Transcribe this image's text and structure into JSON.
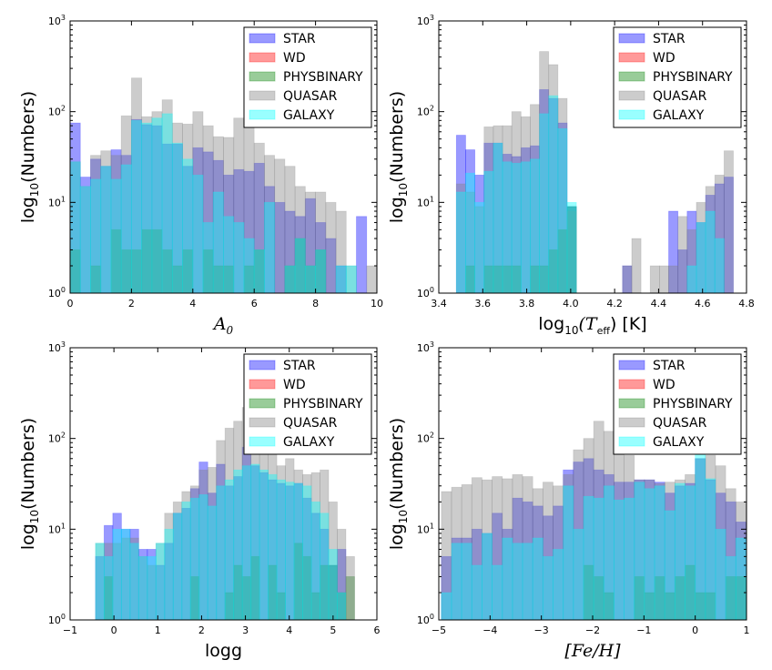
{
  "legend": [
    "STAR",
    "WD",
    "PHYSBINARY",
    "QUASAR",
    "GALAXY"
  ],
  "colors": {
    "STAR": "#0000ff",
    "WD": "#ff0000",
    "PHYSBINARY": "#008000",
    "QUASAR": "#808080",
    "GALAXY": "#00ffff"
  },
  "ylabel": {
    "main": "log",
    "sub": "10",
    "rest": "(Numbers)"
  },
  "chart_data": [
    {
      "type": "histogram",
      "yscale": "log",
      "ylim": [
        1,
        1000
      ],
      "yticks": [
        "10^0",
        "10^1",
        "10^2",
        "10^3"
      ],
      "xlabel": {
        "main": "A",
        "sub": "0",
        "rest": ""
      },
      "xlim": [
        0,
        10
      ],
      "xticks": [
        "0",
        "2",
        "4",
        "6",
        "8",
        "10"
      ],
      "xtick_values": [
        0,
        2,
        4,
        6,
        8,
        10
      ],
      "bins": {
        "start": 0,
        "width": 0.3333,
        "count": 30
      },
      "legend_position": "top-right",
      "series": [
        {
          "name": "STAR",
          "values": [
            75,
            19,
            30,
            25,
            38,
            33,
            82,
            72,
            70,
            44,
            44,
            25,
            40,
            36,
            29,
            20,
            23,
            22,
            27,
            15,
            10,
            8,
            7,
            11,
            6,
            4,
            2,
            0,
            7,
            0
          ]
        },
        {
          "name": "WD",
          "values": []
        },
        {
          "name": "PHYSBINARY",
          "values": [
            3,
            0,
            2,
            0,
            5,
            3,
            3,
            5,
            5,
            3,
            2,
            3,
            0,
            3,
            2,
            2,
            0,
            2,
            3,
            0,
            0,
            2,
            4,
            2,
            3,
            0,
            0,
            0,
            0,
            0
          ]
        },
        {
          "name": "QUASAR",
          "values": [
            28,
            15,
            33,
            37,
            33,
            90,
            235,
            88,
            100,
            135,
            75,
            73,
            100,
            70,
            53,
            52,
            85,
            70,
            45,
            33,
            30,
            25,
            15,
            13,
            13,
            10,
            8,
            2,
            0,
            2
          ]
        },
        {
          "name": "GALAXY",
          "values": [
            28,
            15,
            18,
            25,
            18,
            26,
            80,
            75,
            85,
            95,
            45,
            30,
            20,
            6,
            13,
            7,
            6,
            4,
            3,
            10,
            0,
            2,
            4,
            2,
            3,
            0,
            2,
            2,
            0,
            0
          ]
        }
      ]
    },
    {
      "type": "histogram",
      "yscale": "log",
      "ylim": [
        1,
        1000
      ],
      "yticks": [
        "10^0",
        "10^1",
        "10^2",
        "10^3"
      ],
      "xlabel": {
        "main": "log",
        "sub": "10",
        "rest": "(T",
        "sub2": "eff",
        "rest2": ") [K]"
      },
      "xlim": [
        3.4,
        4.8
      ],
      "xticks": [
        "3.4",
        "3.6",
        "3.8",
        "4.0",
        "4.2",
        "4.4",
        "4.6",
        "4.8"
      ],
      "xtick_values": [
        3.4,
        3.6,
        3.8,
        4.0,
        4.2,
        4.4,
        4.6,
        4.8
      ],
      "bins": {
        "start": 3.48,
        "width": 0.042,
        "count": 30
      },
      "legend_position": "top-right",
      "series": [
        {
          "name": "STAR",
          "values": [
            55,
            38,
            20,
            45,
            45,
            34,
            32,
            40,
            42,
            175,
            140,
            75,
            9,
            0,
            0,
            0,
            0,
            0,
            2,
            0,
            0,
            0,
            0,
            8,
            3,
            8,
            6,
            12,
            16,
            19
          ]
        },
        {
          "name": "WD",
          "values": []
        },
        {
          "name": "PHYSBINARY",
          "values": [
            0,
            2,
            0,
            2,
            2,
            2,
            2,
            0,
            2,
            2,
            3,
            5,
            9,
            0,
            0,
            0,
            0,
            0,
            0,
            0,
            0,
            0,
            0,
            0,
            0,
            0,
            0,
            0,
            0,
            0
          ]
        },
        {
          "name": "QUASAR",
          "values": [
            16,
            13,
            9,
            68,
            70,
            70,
            100,
            88,
            120,
            460,
            330,
            140,
            8,
            0,
            0,
            0,
            0,
            0,
            2,
            4,
            0,
            2,
            2,
            2,
            7,
            5,
            10,
            15,
            20,
            37
          ]
        },
        {
          "name": "GALAXY",
          "values": [
            13,
            21,
            10,
            22,
            45,
            28,
            27,
            28,
            30,
            95,
            150,
            65,
            10,
            0,
            0,
            0,
            0,
            0,
            0,
            0,
            0,
            0,
            0,
            0,
            0,
            2,
            6,
            8,
            4,
            0
          ]
        }
      ]
    },
    {
      "type": "histogram",
      "yscale": "log",
      "ylim": [
        1,
        1000
      ],
      "yticks": [
        "10^0",
        "10^1",
        "10^2",
        "10^3"
      ],
      "xlabel": {
        "main": "logg",
        "sub": "",
        "rest": ""
      },
      "xlim": [
        -1,
        6
      ],
      "xticks": [
        "−1",
        "0",
        "1",
        "2",
        "3",
        "4",
        "5",
        "6"
      ],
      "xtick_values": [
        -1,
        0,
        1,
        2,
        3,
        4,
        5,
        6
      ],
      "bins": {
        "start": -0.42,
        "width": 0.197,
        "count": 30
      },
      "legend_position": "top-right",
      "series": [
        {
          "name": "STAR",
          "values": [
            5,
            11,
            15,
            10,
            10,
            6,
            6,
            4,
            7,
            15,
            17,
            28,
            55,
            25,
            52,
            30,
            38,
            80,
            50,
            42,
            35,
            32,
            30,
            32,
            22,
            15,
            10,
            4,
            6,
            1
          ]
        },
        {
          "name": "WD",
          "values": []
        },
        {
          "name": "PHYSBINARY",
          "values": [
            0,
            3,
            0,
            0,
            0,
            0,
            0,
            0,
            0,
            0,
            0,
            3,
            0,
            0,
            0,
            2,
            4,
            3,
            5,
            0,
            4,
            2,
            0,
            7,
            5,
            2,
            4,
            4,
            2,
            3
          ]
        },
        {
          "name": "QUASAR",
          "values": [
            7,
            7,
            7,
            8,
            8,
            5,
            4,
            7,
            15,
            20,
            26,
            30,
            45,
            48,
            95,
            130,
            155,
            220,
            160,
            155,
            130,
            50,
            60,
            45,
            40,
            42,
            45,
            20,
            10,
            5
          ]
        },
        {
          "name": "GALAXY",
          "values": [
            7,
            5,
            10,
            10,
            7,
            5,
            5,
            7,
            10,
            15,
            20,
            22,
            24,
            18,
            30,
            35,
            45,
            50,
            52,
            45,
            40,
            35,
            33,
            32,
            30,
            20,
            15,
            6,
            2,
            1
          ]
        }
      ]
    },
    {
      "type": "histogram",
      "yscale": "log",
      "ylim": [
        1,
        1000
      ],
      "yticks": [
        "10^0",
        "10^1",
        "10^2",
        "10^3"
      ],
      "xlabel": {
        "main": "[Fe/H]",
        "sub": "",
        "rest": ""
      },
      "xlim": [
        -5,
        1
      ],
      "xticks": [
        "−5",
        "−4",
        "−3",
        "−2",
        "−1",
        "0",
        "1"
      ],
      "xtick_values": [
        -5,
        -4,
        -3,
        -2,
        -1,
        0,
        1
      ],
      "bins": {
        "start": -4.95,
        "width": 0.198,
        "count": 30
      },
      "legend_position": "top-right",
      "series": [
        {
          "name": "STAR",
          "values": [
            5,
            8,
            8,
            10,
            9,
            15,
            10,
            22,
            20,
            18,
            14,
            18,
            45,
            55,
            60,
            45,
            40,
            33,
            33,
            35,
            35,
            33,
            25,
            30,
            32,
            60,
            35,
            25,
            20,
            12
          ]
        },
        {
          "name": "WD",
          "values": []
        },
        {
          "name": "PHYSBINARY",
          "values": [
            0,
            0,
            0,
            0,
            0,
            0,
            0,
            0,
            0,
            0,
            0,
            0,
            0,
            0,
            4,
            3,
            2,
            0,
            0,
            3,
            2,
            3,
            2,
            3,
            4,
            2,
            2,
            0,
            3,
            3
          ]
        },
        {
          "name": "QUASAR",
          "values": [
            26,
            29,
            31,
            37,
            35,
            38,
            36,
            40,
            38,
            28,
            33,
            30,
            40,
            75,
            100,
            155,
            120,
            100,
            65,
            35,
            35,
            32,
            33,
            35,
            40,
            60,
            65,
            50,
            28,
            20
          ]
        },
        {
          "name": "GALAXY",
          "values": [
            2,
            7,
            7,
            4,
            9,
            4,
            8,
            7,
            7,
            8,
            5,
            6,
            30,
            10,
            23,
            22,
            30,
            21,
            22,
            33,
            28,
            30,
            16,
            32,
            30,
            70,
            36,
            10,
            5,
            8
          ]
        }
      ]
    }
  ]
}
